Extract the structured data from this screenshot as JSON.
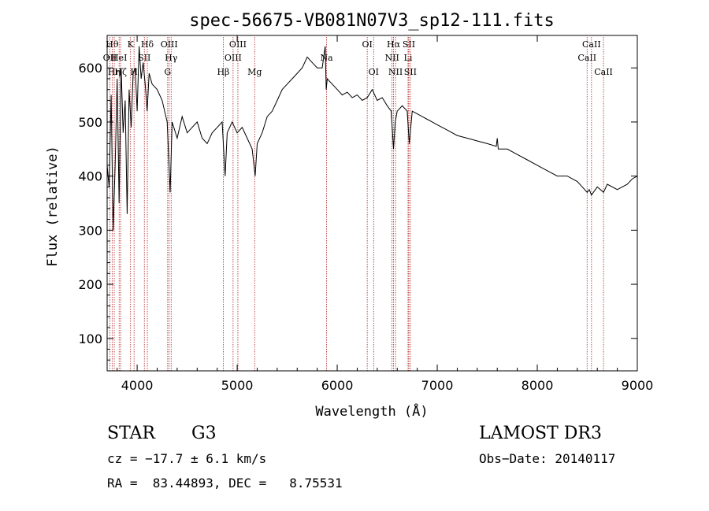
{
  "chart_data": {
    "type": "line",
    "title": "spec-56675-VB081N07V3_sp12-111.fits",
    "xlabel": "Wavelength (Å)",
    "ylabel": "Flux (relative)",
    "xlim": [
      3700,
      9000
    ],
    "ylim": [
      40,
      660
    ],
    "xticks": [
      4000,
      5000,
      6000,
      7000,
      8000,
      9000
    ],
    "yticks": [
      100,
      200,
      300,
      400,
      500,
      600
    ],
    "grid": false,
    "series": [
      {
        "name": "flux",
        "x": [
          3700,
          3720,
          3740,
          3760,
          3780,
          3800,
          3820,
          3840,
          3860,
          3880,
          3900,
          3920,
          3940,
          3960,
          3980,
          4000,
          4020,
          4040,
          4060,
          4080,
          4100,
          4120,
          4150,
          4200,
          4250,
          4300,
          4330,
          4350,
          4400,
          4450,
          4500,
          4550,
          4600,
          4650,
          4700,
          4750,
          4800,
          4850,
          4870,
          4880,
          4900,
          4950,
          5000,
          5050,
          5100,
          5150,
          5180,
          5200,
          5250,
          5300,
          5350,
          5400,
          5450,
          5500,
          5550,
          5600,
          5650,
          5700,
          5750,
          5800,
          5850,
          5880,
          5890,
          5900,
          5950,
          6000,
          6050,
          6100,
          6150,
          6200,
          6250,
          6300,
          6350,
          6400,
          6450,
          6500,
          6540,
          6563,
          6580,
          6600,
          6650,
          6700,
          6720,
          6750,
          6800,
          6850,
          6900,
          6950,
          7000,
          7100,
          7200,
          7300,
          7400,
          7500,
          7590,
          7600,
          7610,
          7700,
          7800,
          7900,
          8000,
          8100,
          8200,
          8300,
          8400,
          8450,
          8498,
          8520,
          8542,
          8600,
          8662,
          8700,
          8800,
          8900,
          8950,
          9000
        ],
        "y": [
          420,
          380,
          550,
          300,
          420,
          580,
          350,
          600,
          480,
          540,
          330,
          560,
          490,
          590,
          600,
          520,
          640,
          580,
          610,
          570,
          520,
          590,
          570,
          560,
          540,
          500,
          370,
          500,
          470,
          510,
          480,
          490,
          500,
          470,
          460,
          480,
          490,
          500,
          430,
          400,
          480,
          500,
          480,
          490,
          470,
          450,
          400,
          460,
          480,
          510,
          520,
          540,
          560,
          570,
          580,
          590,
          600,
          620,
          610,
          600,
          600,
          640,
          560,
          580,
          570,
          560,
          550,
          555,
          545,
          550,
          540,
          545,
          560,
          540,
          545,
          530,
          520,
          450,
          500,
          520,
          530,
          520,
          460,
          520,
          515,
          510,
          505,
          500,
          495,
          485,
          475,
          470,
          465,
          460,
          455,
          470,
          450,
          450,
          440,
          430,
          420,
          410,
          400,
          400,
          390,
          380,
          370,
          375,
          365,
          380,
          370,
          385,
          375,
          385,
          395,
          400
        ]
      }
    ],
    "lines": [
      {
        "name": "OII",
        "x": 3727,
        "row": 1
      },
      {
        "name": "Hθ",
        "x": 3750,
        "row": 0
      },
      {
        "name": "Hη",
        "x": 3771,
        "row": 2
      },
      {
        "name": "HeI",
        "x": 3820,
        "row": 1
      },
      {
        "name": "Hζ",
        "x": 3835,
        "row": 2
      },
      {
        "name": "K",
        "x": 3934,
        "row": 0
      },
      {
        "name": "H",
        "x": 3969,
        "row": 2
      },
      {
        "name": "SII",
        "x": 4072,
        "row": 1
      },
      {
        "name": "Hδ",
        "x": 4102,
        "row": 0
      },
      {
        "name": "OIII",
        "x": 4320,
        "row": 0
      },
      {
        "name": "Hγ",
        "x": 4340,
        "row": 1
      },
      {
        "name": "G",
        "x": 4305,
        "row": 2
      },
      {
        "name": "Hβ",
        "x": 4861,
        "row": 2
      },
      {
        "name": "OIII",
        "x": 4959,
        "row": 1
      },
      {
        "name": "OIII",
        "x": 5007,
        "row": 0
      },
      {
        "name": "Mg",
        "x": 5175,
        "row": 2
      },
      {
        "name": "Na",
        "x": 5894,
        "row": 1
      },
      {
        "name": "OI",
        "x": 6300,
        "row": 0
      },
      {
        "name": "OI",
        "x": 6364,
        "row": 2
      },
      {
        "name": "NII",
        "x": 6548,
        "row": 1
      },
      {
        "name": "Hα",
        "x": 6563,
        "row": 0
      },
      {
        "name": "NII",
        "x": 6583,
        "row": 2
      },
      {
        "name": "Li",
        "x": 6708,
        "row": 1
      },
      {
        "name": "SII",
        "x": 6716,
        "row": 0
      },
      {
        "name": "SII",
        "x": 6731,
        "row": 2
      },
      {
        "name": "CaII",
        "x": 8498,
        "row": 1
      },
      {
        "name": "CaII",
        "x": 8542,
        "row": 0
      },
      {
        "name": "CaII",
        "x": 8662,
        "row": 2
      }
    ],
    "colors": {
      "line_marker": "#b22222",
      "spectrum": "#000000"
    }
  },
  "info": {
    "class": "STAR",
    "subclass": "G3",
    "survey": "LAMOST DR3",
    "cz": "cz = −17.7 ± 6.1 km/s",
    "obs_date": "Obs−Date: 20140117",
    "radec": "RA =  83.44893, DEC =   8.75531"
  }
}
